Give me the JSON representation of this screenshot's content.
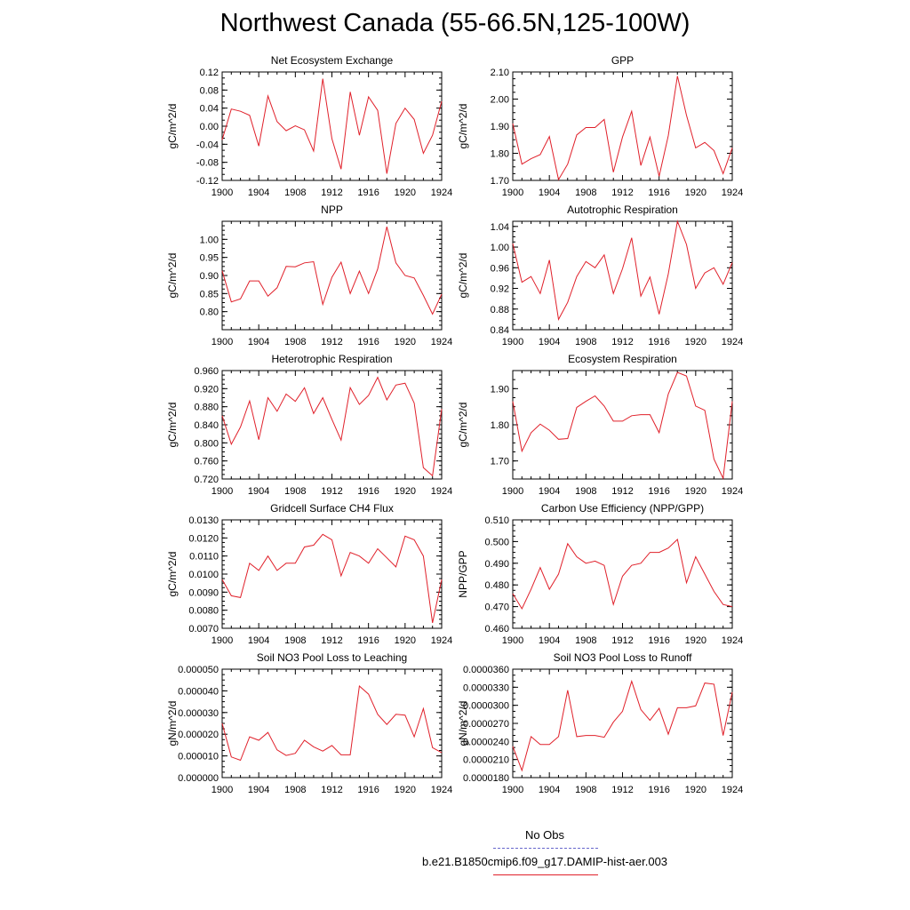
{
  "page_title": "Northwest Canada (55-66.5N,125-100W)",
  "legend": [
    {
      "label": "No Obs",
      "color": "#6666cc",
      "style": "dashed"
    },
    {
      "label": "b.e21.B1850cmip6.f09_g17.DAMIP-hist-aer.003",
      "color": "#e0202a",
      "style": "solid"
    }
  ],
  "chart_data": [
    {
      "type": "line",
      "title": "Net Ecosystem Exchange",
      "ylabel": "gC/m^2/d",
      "x": [
        1900,
        1901,
        1902,
        1903,
        1904,
        1905,
        1906,
        1907,
        1908,
        1909,
        1910,
        1911,
        1912,
        1913,
        1914,
        1915,
        1916,
        1917,
        1918,
        1919,
        1920,
        1921,
        1922,
        1923,
        1924
      ],
      "values": [
        -0.03,
        0.038,
        0.033,
        0.024,
        -0.044,
        0.067,
        0.01,
        -0.01,
        0.001,
        -0.008,
        -0.055,
        0.105,
        -0.028,
        -0.095,
        0.076,
        -0.02,
        0.065,
        0.035,
        -0.105,
        0.006,
        0.04,
        0.015,
        -0.06,
        -0.02,
        0.055
      ],
      "ylim": [
        -0.12,
        0.12
      ],
      "yticks": [
        "-0.12",
        "-0.08",
        "-0.04",
        "0.00",
        "0.04",
        "0.08",
        "0.12"
      ],
      "minor_per": 3,
      "xticks": [
        "1900",
        "1904",
        "1908",
        "1912",
        "1916",
        "1920",
        "1924"
      ],
      "color": "#e0202a"
    },
    {
      "type": "line",
      "title": "GPP",
      "ylabel": "gC/m^2/d",
      "x": [
        1900,
        1901,
        1902,
        1903,
        1904,
        1905,
        1906,
        1907,
        1908,
        1909,
        1910,
        1911,
        1912,
        1913,
        1914,
        1915,
        1916,
        1917,
        1918,
        1919,
        1920,
        1921,
        1922,
        1923,
        1924
      ],
      "values": [
        1.91,
        1.76,
        1.78,
        1.795,
        1.862,
        1.703,
        1.76,
        1.868,
        1.895,
        1.895,
        1.925,
        1.73,
        1.86,
        1.955,
        1.755,
        1.86,
        1.715,
        1.865,
        2.085,
        1.94,
        1.82,
        1.84,
        1.81,
        1.725,
        1.82
      ],
      "ylim": [
        1.7,
        2.1
      ],
      "yticks": [
        "1.70",
        "1.80",
        "1.90",
        "2.00",
        "2.10"
      ],
      "minor_per": 4,
      "xticks": [
        "1900",
        "1904",
        "1908",
        "1912",
        "1916",
        "1920",
        "1924"
      ],
      "color": "#e0202a"
    },
    {
      "type": "line",
      "title": "NPP",
      "ylabel": "gC/m^2/d",
      "x": [
        1900,
        1901,
        1902,
        1903,
        1904,
        1905,
        1906,
        1907,
        1908,
        1909,
        1910,
        1911,
        1912,
        1913,
        1914,
        1915,
        1916,
        1917,
        1918,
        1919,
        1920,
        1921,
        1922,
        1923,
        1924
      ],
      "values": [
        0.913,
        0.827,
        0.835,
        0.885,
        0.885,
        0.843,
        0.866,
        0.925,
        0.924,
        0.935,
        0.938,
        0.82,
        0.895,
        0.937,
        0.85,
        0.912,
        0.85,
        0.918,
        1.035,
        0.935,
        0.9,
        0.893,
        0.845,
        0.793,
        0.848
      ],
      "ylim": [
        0.75,
        1.05
      ],
      "yticks": [
        "0.80",
        "0.85",
        "0.90",
        "0.95",
        "1.00"
      ],
      "tick_start": 0.8,
      "tick_step": 0.05,
      "minor_per": 4,
      "xticks": [
        "1900",
        "1904",
        "1908",
        "1912",
        "1916",
        "1920",
        "1924"
      ],
      "color": "#e0202a"
    },
    {
      "type": "line",
      "title": "Autotrophic Respiration",
      "ylabel": "gC/m^2/d",
      "x": [
        1900,
        1901,
        1902,
        1903,
        1904,
        1905,
        1906,
        1907,
        1908,
        1909,
        1910,
        1911,
        1912,
        1913,
        1914,
        1915,
        1916,
        1917,
        1918,
        1919,
        1920,
        1921,
        1922,
        1923,
        1924
      ],
      "values": [
        1.007,
        0.932,
        0.943,
        0.91,
        0.975,
        0.86,
        0.893,
        0.943,
        0.972,
        0.96,
        0.985,
        0.91,
        0.958,
        1.018,
        0.905,
        0.942,
        0.87,
        0.948,
        1.05,
        1.005,
        0.92,
        0.95,
        0.96,
        0.928,
        0.97
      ],
      "ylim": [
        0.84,
        1.05
      ],
      "yticks": [
        "0.84",
        "0.88",
        "0.92",
        "0.96",
        "1.00",
        "1.04"
      ],
      "tick_start": 0.84,
      "tick_step": 0.04,
      "minor_per": 4,
      "xticks": [
        "1900",
        "1904",
        "1908",
        "1912",
        "1916",
        "1920",
        "1924"
      ],
      "color": "#e0202a"
    },
    {
      "type": "line",
      "title": "Heterotrophic Respiration",
      "ylabel": "gC/m^2/d",
      "x": [
        1900,
        1901,
        1902,
        1903,
        1904,
        1905,
        1906,
        1907,
        1908,
        1909,
        1910,
        1911,
        1912,
        1913,
        1914,
        1915,
        1916,
        1917,
        1918,
        1919,
        1920,
        1921,
        1922,
        1923,
        1924
      ],
      "values": [
        0.86,
        0.797,
        0.835,
        0.893,
        0.807,
        0.9,
        0.87,
        0.908,
        0.892,
        0.922,
        0.865,
        0.9,
        0.852,
        0.806,
        0.922,
        0.885,
        0.905,
        0.945,
        0.895,
        0.928,
        0.932,
        0.888,
        0.745,
        0.727,
        0.875
      ],
      "ylim": [
        0.72,
        0.96
      ],
      "yticks": [
        "0.720",
        "0.760",
        "0.800",
        "0.840",
        "0.880",
        "0.920",
        "0.960"
      ],
      "minor_per": 4,
      "xticks": [
        "1900",
        "1904",
        "1908",
        "1912",
        "1916",
        "1920",
        "1924"
      ],
      "color": "#e0202a"
    },
    {
      "type": "line",
      "title": "Ecosystem Respiration",
      "ylabel": "gC/m^2/d",
      "x": [
        1900,
        1901,
        1902,
        1903,
        1904,
        1905,
        1906,
        1907,
        1908,
        1909,
        1910,
        1911,
        1912,
        1913,
        1914,
        1915,
        1916,
        1917,
        1918,
        1919,
        1920,
        1921,
        1922,
        1923,
        1924
      ],
      "values": [
        1.865,
        1.727,
        1.778,
        1.802,
        1.785,
        1.76,
        1.762,
        1.848,
        1.865,
        1.88,
        1.852,
        1.81,
        1.81,
        1.825,
        1.828,
        1.828,
        1.778,
        1.885,
        1.945,
        1.935,
        1.852,
        1.84,
        1.705,
        1.652,
        1.865
      ],
      "ylim": [
        1.65,
        1.95
      ],
      "yticks": [
        "1.70",
        "1.80",
        "1.90"
      ],
      "tick_start": 1.7,
      "tick_step": 0.1,
      "minor_per": 4,
      "xticks": [
        "1900",
        "1904",
        "1908",
        "1912",
        "1916",
        "1920",
        "1924"
      ],
      "color": "#e0202a"
    },
    {
      "type": "line",
      "title": "Gridcell Surface CH4 Flux",
      "ylabel": "gC/m^2/d",
      "x": [
        1900,
        1901,
        1902,
        1903,
        1904,
        1905,
        1906,
        1907,
        1908,
        1909,
        1910,
        1911,
        1912,
        1913,
        1914,
        1915,
        1916,
        1917,
        1918,
        1919,
        1920,
        1921,
        1922,
        1923,
        1924
      ],
      "values": [
        0.0097,
        0.0088,
        0.0087,
        0.0106,
        0.0102,
        0.011,
        0.0102,
        0.0106,
        0.0106,
        0.0115,
        0.0116,
        0.0122,
        0.0119,
        0.0099,
        0.0112,
        0.011,
        0.0106,
        0.0114,
        0.0109,
        0.0104,
        0.0121,
        0.0119,
        0.011,
        0.0073,
        0.0097
      ],
      "ylim": [
        0.007,
        0.013
      ],
      "yticks": [
        "0.0070",
        "0.0080",
        "0.0090",
        "0.0100",
        "0.0110",
        "0.0120",
        "0.0130"
      ],
      "minor_per": 4,
      "xticks": [
        "1900",
        "1904",
        "1908",
        "1912",
        "1916",
        "1920",
        "1924"
      ],
      "color": "#e0202a"
    },
    {
      "type": "line",
      "title": "Carbon Use Efficiency (NPP/GPP)",
      "ylabel": "NPP/GPP",
      "x": [
        1900,
        1901,
        1902,
        1903,
        1904,
        1905,
        1906,
        1907,
        1908,
        1909,
        1910,
        1911,
        1912,
        1913,
        1914,
        1915,
        1916,
        1917,
        1918,
        1919,
        1920,
        1921,
        1922,
        1923,
        1924
      ],
      "values": [
        0.476,
        0.469,
        0.478,
        0.488,
        0.478,
        0.485,
        0.499,
        0.493,
        0.49,
        0.491,
        0.489,
        0.471,
        0.484,
        0.489,
        0.49,
        0.495,
        0.495,
        0.497,
        0.501,
        0.481,
        0.493,
        0.485,
        0.477,
        0.471,
        0.47
      ],
      "ylim": [
        0.46,
        0.51
      ],
      "yticks": [
        "0.460",
        "0.470",
        "0.480",
        "0.490",
        "0.500",
        "0.510"
      ],
      "minor_per": 4,
      "xticks": [
        "1900",
        "1904",
        "1908",
        "1912",
        "1916",
        "1920",
        "1924"
      ],
      "color": "#e0202a"
    },
    {
      "type": "line",
      "title": "Soil NO3 Pool Loss to Leaching",
      "ylabel": "gN/m^2/d",
      "x": [
        1900,
        1901,
        1902,
        1903,
        1904,
        1905,
        1906,
        1907,
        1908,
        1909,
        1910,
        1911,
        1912,
        1913,
        1914,
        1915,
        1916,
        1917,
        1918,
        1919,
        1920,
        1921,
        1922,
        1923,
        1924
      ],
      "values": [
        2.5e-05,
        9.5e-06,
        8e-06,
        1.88e-05,
        1.72e-05,
        2.08e-05,
        1.28e-05,
        1.02e-05,
        1.12e-05,
        1.72e-05,
        1.42e-05,
        1.22e-05,
        1.48e-05,
        1.05e-05,
        1.05e-05,
        4.22e-05,
        3.85e-05,
        2.92e-05,
        2.45e-05,
        2.92e-05,
        2.88e-05,
        1.88e-05,
        3.18e-05,
        1.38e-05,
        1.15e-05
      ],
      "ylim": [
        0,
        5e-05
      ],
      "yticks": [
        "0.000000",
        "0.000010",
        "0.000020",
        "0.000030",
        "0.000040",
        "0.000050"
      ],
      "minor_per": 4,
      "xticks": [
        "1900",
        "1904",
        "1908",
        "1912",
        "1916",
        "1920",
        "1924"
      ],
      "color": "#e0202a"
    },
    {
      "type": "line",
      "title": "Soil NO3 Pool Loss to Runoff",
      "ylabel": "gN/m^2/d",
      "x": [
        1900,
        1901,
        1902,
        1903,
        1904,
        1905,
        1906,
        1907,
        1908,
        1909,
        1910,
        1911,
        1912,
        1913,
        1914,
        1915,
        1916,
        1917,
        1918,
        1919,
        1920,
        1921,
        1922,
        1923,
        1924
      ],
      "values": [
        2.32e-05,
        1.92e-05,
        2.48e-05,
        2.35e-05,
        2.35e-05,
        2.48e-05,
        3.25e-05,
        2.48e-05,
        2.5e-05,
        2.5e-05,
        2.47e-05,
        2.72e-05,
        2.9e-05,
        3.4e-05,
        2.93e-05,
        2.75e-05,
        2.95e-05,
        2.52e-05,
        2.96e-05,
        2.96e-05,
        2.99e-05,
        3.37e-05,
        3.35e-05,
        2.5e-05,
        3.22e-05
      ],
      "ylim": [
        1.8e-05,
        3.6e-05
      ],
      "yticks": [
        "0.0000180",
        "0.0000210",
        "0.0000240",
        "0.0000270",
        "0.0000300",
        "0.0000330",
        "0.0000360"
      ],
      "minor_per": 3,
      "xticks": [
        "1900",
        "1904",
        "1908",
        "1912",
        "1916",
        "1920",
        "1924"
      ],
      "color": "#e0202a"
    }
  ]
}
